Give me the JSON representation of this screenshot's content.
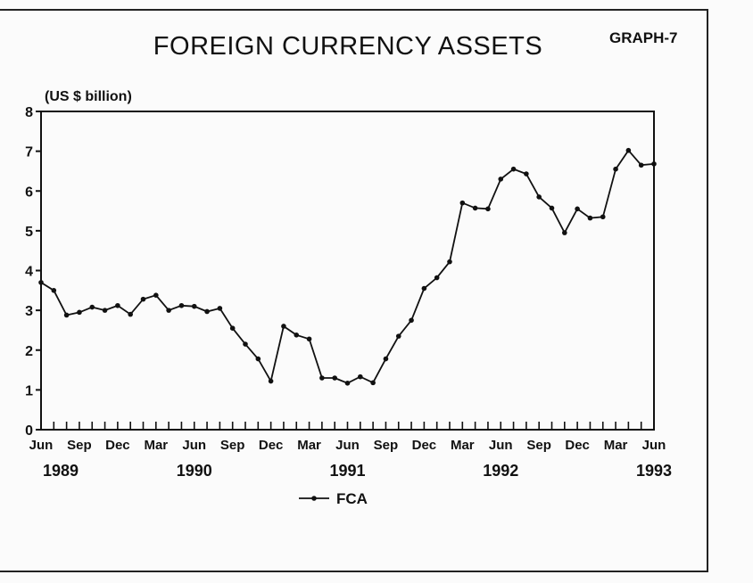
{
  "header": {
    "title": "FOREIGN CURRENCY ASSETS",
    "graph_label": "GRAPH-7"
  },
  "chart_data": {
    "type": "line",
    "title": "FOREIGN CURRENCY ASSETS",
    "ylabel": "(US $ billion)",
    "xlabel": "",
    "ylim": [
      0,
      8
    ],
    "yticks": [
      0,
      1,
      2,
      3,
      4,
      5,
      6,
      7,
      8
    ],
    "x_tick_labels": [
      "Jun",
      "Sep",
      "Dec",
      "Mar",
      "Jun",
      "Sep",
      "Dec",
      "Mar",
      "Jun",
      "Sep",
      "Dec",
      "Mar",
      "Jun",
      "Sep",
      "Dec",
      "Mar",
      "Jun"
    ],
    "year_labels": [
      "1989",
      "1990",
      "1991",
      "1992",
      "1993"
    ],
    "x": [
      "1989-06",
      "1989-07",
      "1989-08",
      "1989-09",
      "1989-10",
      "1989-11",
      "1989-12",
      "1990-01",
      "1990-02",
      "1990-03",
      "1990-04",
      "1990-05",
      "1990-06",
      "1990-07",
      "1990-08",
      "1990-09",
      "1990-10",
      "1990-11",
      "1990-12",
      "1991-01",
      "1991-02",
      "1991-03",
      "1991-04",
      "1991-05",
      "1991-06",
      "1991-07",
      "1991-08",
      "1991-09",
      "1991-10",
      "1991-11",
      "1991-12",
      "1992-01",
      "1992-02",
      "1992-03",
      "1992-04",
      "1992-05",
      "1992-06",
      "1992-07",
      "1992-08",
      "1992-09",
      "1992-10",
      "1992-11",
      "1992-12",
      "1993-01",
      "1993-02",
      "1993-03",
      "1993-04",
      "1993-05",
      "1993-06"
    ],
    "series": [
      {
        "name": "FCA",
        "values": [
          3.7,
          3.5,
          2.88,
          2.95,
          3.08,
          3.0,
          3.12,
          2.9,
          3.28,
          3.38,
          3.0,
          3.12,
          3.1,
          2.97,
          3.05,
          2.55,
          2.15,
          1.78,
          1.22,
          2.6,
          2.38,
          2.28,
          1.3,
          1.3,
          1.17,
          1.33,
          1.18,
          1.78,
          2.35,
          2.75,
          3.55,
          3.82,
          4.22,
          5.7,
          5.57,
          5.55,
          6.3,
          6.55,
          6.43,
          5.85,
          5.57,
          4.95,
          5.55,
          5.32,
          5.35,
          6.55,
          7.02,
          6.65,
          6.68
        ]
      }
    ],
    "legend": {
      "position": "bottom-center",
      "entries": [
        "FCA"
      ]
    },
    "grid": false,
    "color": "#111111"
  }
}
